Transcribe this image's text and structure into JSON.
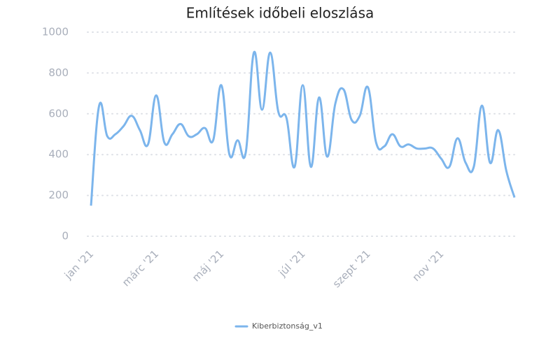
{
  "chart_data": {
    "type": "line",
    "title": "Említések időbeli eloszlása",
    "categories": [
      "jan '21",
      null,
      null,
      null,
      null,
      null,
      null,
      null,
      "márc '21",
      null,
      null,
      null,
      null,
      null,
      null,
      null,
      "máj '21",
      null,
      null,
      null,
      null,
      null,
      null,
      null,
      null,
      null,
      "júl '21",
      null,
      null,
      null,
      null,
      null,
      null,
      null,
      "szept '21",
      null,
      null,
      null,
      null,
      null,
      null,
      null,
      null,
      "nov '21",
      null,
      null,
      null,
      null,
      null,
      null,
      null,
      null,
      null
    ],
    "series": [
      {
        "name": "Kiberbiztonság_v1",
        "color": "#7cb5ec",
        "values": [
          150,
          640,
          490,
          500,
          540,
          590,
          520,
          450,
          690,
          460,
          500,
          550,
          490,
          500,
          530,
          470,
          740,
          400,
          470,
          410,
          900,
          620,
          900,
          610,
          580,
          340,
          740,
          340,
          680,
          390,
          650,
          720,
          570,
          590,
          730,
          460,
          440,
          500,
          440,
          450,
          430,
          430,
          430,
          380,
          340,
          480,
          360,
          340,
          640,
          360,
          520,
          320,
          190
        ]
      }
    ],
    "ylim": [
      0,
      1000
    ],
    "yticks": [
      0,
      200,
      400,
      600,
      800,
      1000
    ],
    "grid": true,
    "legend": "bottom"
  }
}
